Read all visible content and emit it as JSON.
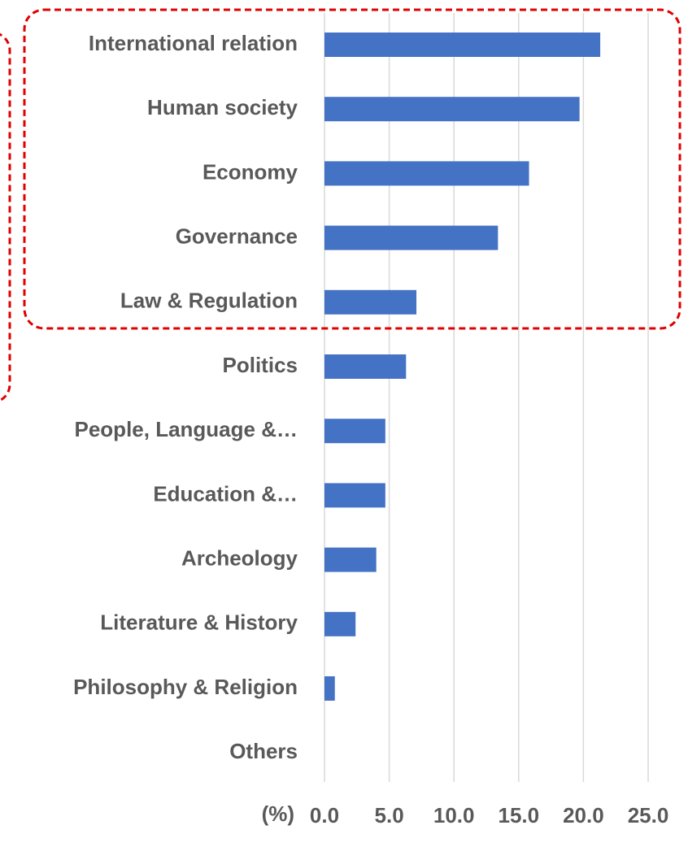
{
  "chart_data": {
    "type": "bar",
    "orientation": "horizontal",
    "categories": [
      "International relation",
      "Human society",
      "Economy",
      "Governance",
      "Law & Regulation",
      "Politics",
      "People, Language &…",
      "Education &…",
      "Archeology",
      "Literature & History",
      "Philosophy & Religion",
      "Others"
    ],
    "values": [
      21.3,
      19.7,
      15.8,
      13.4,
      7.1,
      6.3,
      4.7,
      4.7,
      4.0,
      2.4,
      0.8,
      0
    ],
    "color": "#4472c4",
    "x_label": "(%)",
    "xlim": [
      0,
      25
    ],
    "xticks": [
      {
        "value": 0,
        "label": "0.0"
      },
      {
        "value": 5,
        "label": "5.0"
      },
      {
        "value": 10,
        "label": "10.0"
      },
      {
        "value": 15,
        "label": "15.0"
      },
      {
        "value": 20,
        "label": "20.0"
      },
      {
        "value": 25,
        "label": "25.0"
      }
    ],
    "grid": true
  }
}
